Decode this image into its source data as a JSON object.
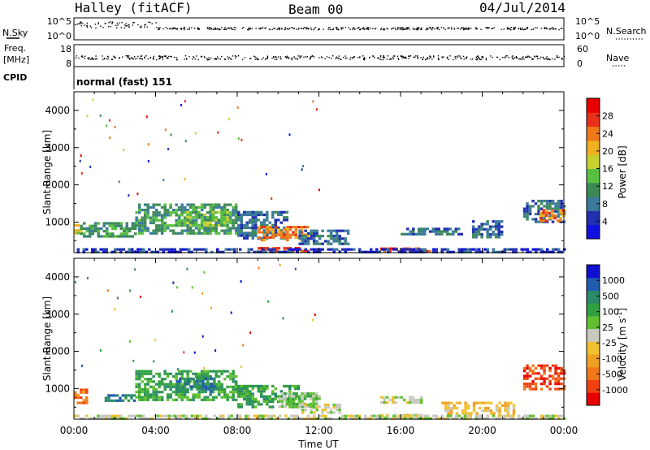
{
  "header": {
    "title": "Halley (fitACF)",
    "beam": "Beam 00",
    "date": "04/Jul/2014"
  },
  "status_panels": {
    "nsky": {
      "label": "N.Sky",
      "ticks_left": [
        "10^5",
        "10^0"
      ]
    },
    "nsearch": {
      "label": "N.Search",
      "ticks_right": [
        "10^5",
        "10^0"
      ]
    },
    "freq": {
      "label_line1": "Freq.",
      "label_line2": "[MHz]",
      "ticks_left": [
        "18",
        "8"
      ]
    },
    "nave": {
      "label": "Nave",
      "ticks_right": [
        "60",
        "0"
      ]
    },
    "cpid": {
      "label": "CPID",
      "value": "normal (fast) 151"
    }
  },
  "chart_data": [
    {
      "type": "heatmap",
      "panel": "power",
      "ylabel": "Slant Range [km]",
      "ylim": [
        180,
        4500
      ],
      "yticks": [
        "1000",
        "2000",
        "3000",
        "4000"
      ],
      "ytick_values": [
        1000,
        2000,
        3000,
        4000
      ],
      "xlim": [
        0,
        24
      ],
      "colorbar": {
        "label": "Power [dB]",
        "tick_labels": [
          "4",
          "8",
          "12",
          "16",
          "20",
          "24",
          "28"
        ],
        "colors": [
          "#1010e0",
          "#2030b0",
          "#3a7a9a",
          "#3d8a55",
          "#58c040",
          "#c8d030",
          "#f0b020",
          "#f07818",
          "#e83018",
          "#e80000"
        ]
      },
      "patches": [
        {
          "t0": 0.0,
          "t1": 0.4,
          "r0": 700,
          "r1": 950,
          "c": 5
        },
        {
          "t0": 0.3,
          "t1": 3.0,
          "r0": 600,
          "r1": 1000,
          "c": 3
        },
        {
          "t0": 3.0,
          "t1": 8.0,
          "r0": 700,
          "r1": 1500,
          "c": 3
        },
        {
          "t0": 5.5,
          "t1": 7.5,
          "r0": 900,
          "r1": 1300,
          "c": 4
        },
        {
          "t0": 8.0,
          "t1": 10.5,
          "r0": 600,
          "r1": 1300,
          "c": 2
        },
        {
          "t0": 9.0,
          "t1": 11.5,
          "r0": 550,
          "r1": 900,
          "c": 7
        },
        {
          "t0": 9.0,
          "t1": 11.5,
          "r0": 200,
          "r1": 330,
          "c": 8
        },
        {
          "t0": 11.0,
          "t1": 13.5,
          "r0": 450,
          "r1": 800,
          "c": 2
        },
        {
          "t0": 15.0,
          "t1": 17.5,
          "r0": 250,
          "r1": 320,
          "c": 8
        },
        {
          "t0": 16.0,
          "t1": 19.0,
          "r0": 650,
          "r1": 850,
          "c": 2
        },
        {
          "t0": 19.5,
          "t1": 21.0,
          "r0": 600,
          "r1": 1050,
          "c": 2
        },
        {
          "t0": 22.0,
          "t1": 24.0,
          "r0": 1000,
          "r1": 1600,
          "c": 2
        },
        {
          "t0": 22.8,
          "t1": 24.0,
          "r0": 1050,
          "r1": 1350,
          "c": 7
        },
        {
          "t0": 0.0,
          "t1": 24.0,
          "r0": 180,
          "r1": 300,
          "c": 1
        }
      ]
    },
    {
      "type": "heatmap",
      "panel": "velocity",
      "ylabel": "Slant Range [km]",
      "ylim": [
        180,
        4500
      ],
      "yticks": [
        "1000",
        "2000",
        "3000",
        "4000"
      ],
      "ytick_values": [
        1000,
        2000,
        3000,
        4000
      ],
      "xticks": [
        "00:00",
        "04:00",
        "08:00",
        "12:00",
        "16:00",
        "20:00",
        "00:00"
      ],
      "xtick_values": [
        0,
        4,
        8,
        12,
        16,
        20,
        24
      ],
      "xlabel": "Time UT",
      "xlim": [
        0,
        24
      ],
      "colorbar": {
        "label": "Velocity [m s",
        "label_superscript": "-1",
        "label_close": "]",
        "tick_labels": [
          "-1000",
          "-500",
          "-100",
          "-25",
          "25",
          "100",
          "500",
          "1000"
        ],
        "colors": [
          "#e80000",
          "#f04010",
          "#f07818",
          "#f0a020",
          "#f0c030",
          "#c8c8c0",
          "#60c030",
          "#30a040",
          "#2a8a6a",
          "#205cb0",
          "#1010d0"
        ]
      },
      "patches": [
        {
          "t0": 0.0,
          "t1": 0.6,
          "r0": 600,
          "r1": 1000,
          "c": 2
        },
        {
          "t0": 1.5,
          "t1": 3.0,
          "r0": 650,
          "r1": 850,
          "c": 8
        },
        {
          "t0": 3.0,
          "t1": 8.0,
          "r0": 700,
          "r1": 1500,
          "c": 7
        },
        {
          "t0": 5.0,
          "t1": 7.0,
          "r0": 900,
          "r1": 1300,
          "c": 8
        },
        {
          "t0": 8.0,
          "t1": 11.0,
          "r0": 500,
          "r1": 1100,
          "c": 7
        },
        {
          "t0": 10.0,
          "t1": 12.0,
          "r0": 500,
          "r1": 900,
          "c": 6
        },
        {
          "t0": 11.0,
          "t1": 13.0,
          "r0": 350,
          "r1": 600,
          "c": 5
        },
        {
          "t0": 15.0,
          "t1": 17.0,
          "r0": 600,
          "r1": 800,
          "c": 5
        },
        {
          "t0": 15.0,
          "t1": 17.0,
          "r0": 200,
          "r1": 320,
          "c": 5
        },
        {
          "t0": 18.0,
          "t1": 21.5,
          "r0": 350,
          "r1": 650,
          "c": 4
        },
        {
          "t0": 22.0,
          "t1": 24.0,
          "r0": 1000,
          "r1": 1650,
          "c": 1
        },
        {
          "t0": 0.0,
          "t1": 24.0,
          "r0": 180,
          "r1": 300,
          "c": 5
        }
      ]
    }
  ]
}
